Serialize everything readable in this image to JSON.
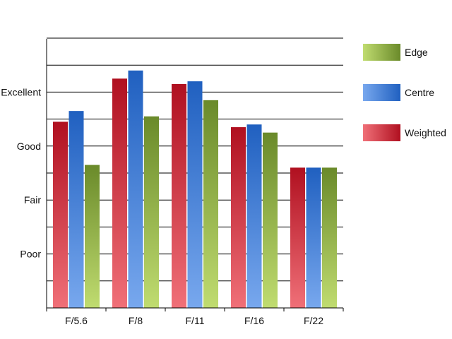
{
  "chart_data": {
    "type": "bar",
    "categories": [
      "F/5.6",
      "F/8",
      "F/11",
      "F/16",
      "F/22"
    ],
    "series": [
      {
        "name": "Weighted",
        "values": [
          3.45,
          4.25,
          4.15,
          3.35,
          2.6
        ],
        "color_light": "#f07078",
        "color_dark": "#b01020"
      },
      {
        "name": "Centre",
        "values": [
          3.65,
          4.4,
          4.2,
          3.4,
          2.6
        ],
        "color_light": "#78a8ee",
        "color_dark": "#2060c0"
      },
      {
        "name": "Edge",
        "values": [
          2.65,
          3.55,
          3.85,
          3.25,
          2.6
        ],
        "color_light": "#c0dc70",
        "color_dark": "#6a8a2a"
      }
    ],
    "y_tick_labels": [
      {
        "value": 1,
        "label": "Poor"
      },
      {
        "value": 2,
        "label": "Fair"
      },
      {
        "value": 3,
        "label": "Good"
      },
      {
        "value": 4,
        "label": "Excellent"
      }
    ],
    "ylim": [
      0,
      5
    ],
    "grid": true,
    "legend": {
      "position": "right",
      "entries": [
        "Edge",
        "Centre",
        "Weighted"
      ]
    }
  }
}
